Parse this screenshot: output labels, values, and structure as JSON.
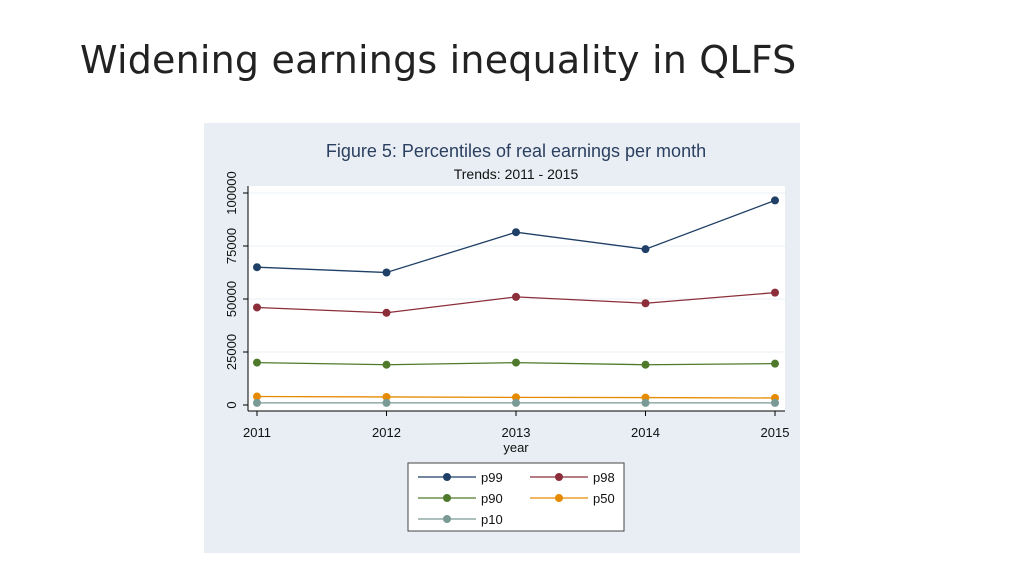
{
  "slide": {
    "title": "Widening earnings inequality in QLFS"
  },
  "chart_data": {
    "type": "line",
    "title": "Figure 5: Percentiles of real earnings per month",
    "subtitle": "Trends: 2011 - 2015",
    "xlabel": "year",
    "ylabel": "",
    "x": [
      2011,
      2012,
      2013,
      2014,
      2015
    ],
    "xticks": [
      "2011",
      "2012",
      "2013",
      "2014",
      "2015"
    ],
    "ylim": [
      0,
      100000
    ],
    "yticks": [
      "0",
      "25000",
      "50000",
      "75000",
      "100000"
    ],
    "grid": true,
    "legend_position": "bottom",
    "series": [
      {
        "name": "p99",
        "color": "#1f3f66",
        "values": [
          65000,
          62500,
          81500,
          73500,
          96500
        ]
      },
      {
        "name": "p98",
        "color": "#8b2e3a",
        "values": [
          46000,
          43500,
          51000,
          48000,
          53000
        ]
      },
      {
        "name": "p90",
        "color": "#4f7a2b",
        "values": [
          20000,
          19000,
          20000,
          19000,
          19500
        ]
      },
      {
        "name": "p50",
        "color": "#e68a00",
        "values": [
          4000,
          3800,
          3600,
          3500,
          3300
        ]
      },
      {
        "name": "p10",
        "color": "#7a9a96",
        "values": [
          1000,
          1000,
          1000,
          1000,
          1000
        ]
      }
    ]
  }
}
